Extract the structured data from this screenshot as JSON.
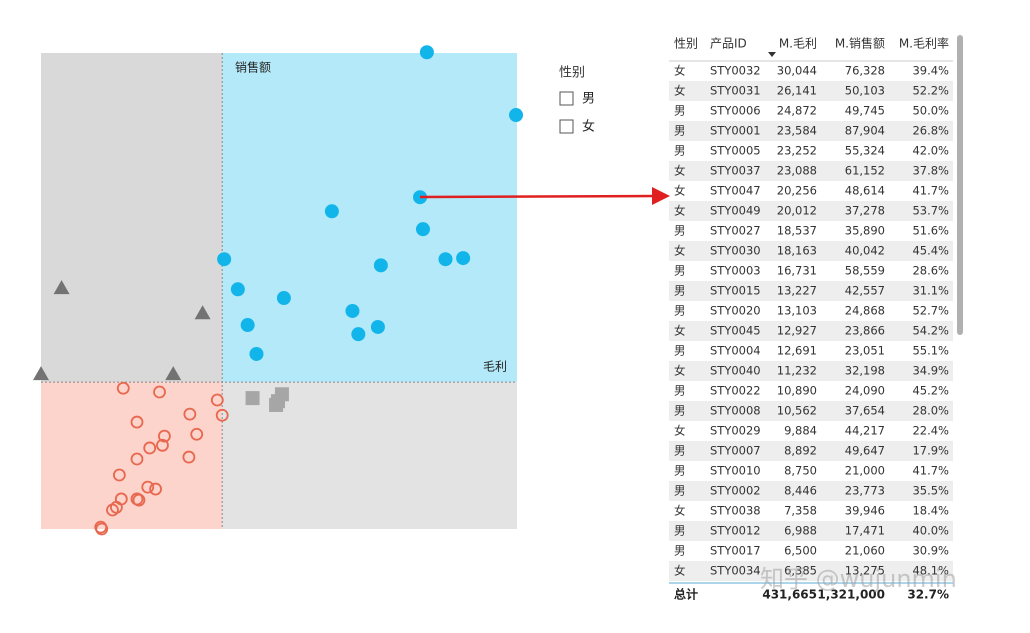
{
  "chart_data": {
    "type": "scatter",
    "xlabel": "毛利",
    "ylabel": "销售额",
    "xlim": [
      -18500,
      30100
    ],
    "ylim": [
      -38600,
      86500
    ],
    "reference_lines": {
      "x": 0,
      "y": 0
    },
    "series": [
      {
        "color": "#12b5ea",
        "marker": "circle",
        "x": [
          20900,
          30000,
          20200,
          11200,
          20500,
          22800,
          24600,
          16200,
          200,
          1600,
          6300,
          13300,
          15900,
          13900,
          2600,
          3500
        ],
        "values": [
          86700,
          70200,
          48600,
          44900,
          40200,
          32300,
          32600,
          30700,
          32300,
          24400,
          22100,
          18700,
          14500,
          12600,
          15000,
          7400
        ]
      },
      {
        "color": "#737373",
        "marker": "triangle",
        "x": [
          -16400,
          -2000,
          -18500,
          -5000
        ],
        "values": [
          24700,
          18100,
          2100,
          2100
        ]
      },
      {
        "color": "#a6a6a6",
        "marker": "square",
        "x": [
          3100,
          6100,
          5700,
          5500
        ],
        "values": [
          -4200,
          -3200,
          -5000,
          -6000
        ]
      },
      {
        "color": "#e8674f",
        "marker": "open-circle",
        "x": [
          -10100,
          -6400,
          -500,
          0,
          -3300,
          -8700,
          -5900,
          -7400,
          -6100,
          -2600,
          -8700,
          -3400,
          -10500,
          -7600,
          -6800,
          -10300,
          -8700,
          -8500,
          -11200,
          -10800,
          -12400,
          -12300
        ],
        "values": [
          -1600,
          -2600,
          -4700,
          -8700,
          -8400,
          -10500,
          -14200,
          -17300,
          -16600,
          -13700,
          -20200,
          -19700,
          -24400,
          -27600,
          -28100,
          -30700,
          -30700,
          -31000,
          -33600,
          -32900,
          -38100,
          -38600
        ]
      }
    ]
  },
  "slicer": {
    "title": "性别",
    "options": [
      "男",
      "女"
    ]
  },
  "table": {
    "headers": [
      "性别",
      "产品ID",
      "M.毛利",
      "M.销售额",
      "M.毛利率"
    ],
    "rows": [
      [
        "女",
        "STY0032",
        "30,044",
        "76,328",
        "39.4%"
      ],
      [
        "女",
        "STY0031",
        "26,141",
        "50,103",
        "52.2%"
      ],
      [
        "男",
        "STY0006",
        "24,872",
        "49,745",
        "50.0%"
      ],
      [
        "男",
        "STY0001",
        "23,584",
        "87,904",
        "26.8%"
      ],
      [
        "男",
        "STY0005",
        "23,252",
        "55,324",
        "42.0%"
      ],
      [
        "女",
        "STY0037",
        "23,088",
        "61,152",
        "37.8%"
      ],
      [
        "女",
        "STY0047",
        "20,256",
        "48,614",
        "41.7%"
      ],
      [
        "女",
        "STY0049",
        "20,012",
        "37,278",
        "53.7%"
      ],
      [
        "男",
        "STY0027",
        "18,537",
        "35,890",
        "51.6%"
      ],
      [
        "女",
        "STY0030",
        "18,163",
        "40,042",
        "45.4%"
      ],
      [
        "男",
        "STY0003",
        "16,731",
        "58,559",
        "28.6%"
      ],
      [
        "男",
        "STY0015",
        "13,227",
        "42,557",
        "31.1%"
      ],
      [
        "男",
        "STY0020",
        "13,103",
        "24,868",
        "52.7%"
      ],
      [
        "女",
        "STY0045",
        "12,927",
        "23,866",
        "54.2%"
      ],
      [
        "男",
        "STY0004",
        "12,691",
        "23,051",
        "55.1%"
      ],
      [
        "女",
        "STY0040",
        "11,232",
        "32,198",
        "34.9%"
      ],
      [
        "男",
        "STY0022",
        "10,890",
        "24,090",
        "45.2%"
      ],
      [
        "男",
        "STY0008",
        "10,562",
        "37,654",
        "28.0%"
      ],
      [
        "女",
        "STY0029",
        "9,884",
        "44,217",
        "22.4%"
      ],
      [
        "男",
        "STY0007",
        "8,892",
        "49,647",
        "17.9%"
      ],
      [
        "男",
        "STY0010",
        "8,750",
        "21,000",
        "41.7%"
      ],
      [
        "男",
        "STY0002",
        "8,446",
        "23,773",
        "35.5%"
      ],
      [
        "女",
        "STY0038",
        "7,358",
        "39,946",
        "18.4%"
      ],
      [
        "男",
        "STY0012",
        "6,988",
        "17,471",
        "40.0%"
      ],
      [
        "男",
        "STY0017",
        "6,500",
        "21,060",
        "30.9%"
      ],
      [
        "女",
        "STY0034",
        "6,385",
        "13,275",
        "48.1%"
      ]
    ],
    "total": {
      "label": "总计",
      "values": [
        "431,665",
        "1,321,000",
        "32.7%"
      ]
    }
  },
  "watermark": "知乎 @wujunmin"
}
